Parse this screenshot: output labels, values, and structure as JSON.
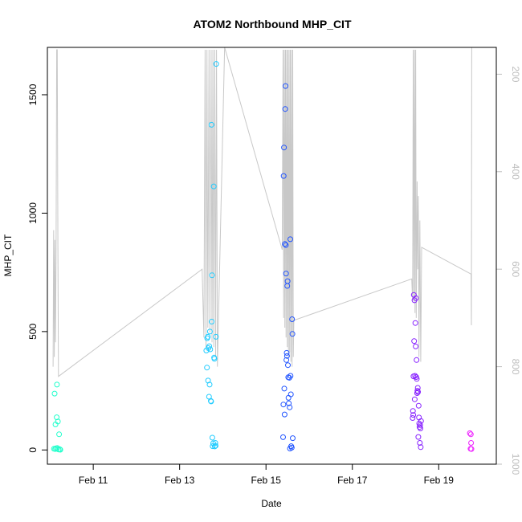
{
  "chart_data": {
    "type": "scatter",
    "title": "ATOM2 Northbound MHP_CIT",
    "xlabel": "Date",
    "ylabel": "MHP_CIT",
    "x_is_date": true,
    "xlim": [
      "2024-02-09T22:30",
      "2024-02-20T08:00"
    ],
    "ylim": [
      -60,
      1700
    ],
    "x_ticks": [
      {
        "value": "2024-02-11T00:00",
        "label": "Feb 11"
      },
      {
        "value": "2024-02-13T00:00",
        "label": "Feb 13"
      },
      {
        "value": "2024-02-15T00:00",
        "label": "Feb 15"
      },
      {
        "value": "2024-02-17T00:00",
        "label": "Feb 17"
      },
      {
        "value": "2024-02-19T00:00",
        "label": "Feb 19"
      }
    ],
    "y_ticks": [
      0,
      500,
      1000,
      1500
    ],
    "secondary_axis": {
      "ylim": [
        1000,
        145
      ],
      "reversed": true,
      "ticks": [
        200,
        400,
        600,
        800,
        1000
      ],
      "color": "#bebebe"
    },
    "colors": {
      "axis": "#000000",
      "line": "#c8c8c8",
      "secondary_axis": "#bebebe"
    },
    "series": [
      {
        "color": "#22ffcc",
        "points": [
          [
            "2024-02-10T02:10",
            5
          ],
          [
            "2024-02-10T02:30",
            238
          ],
          [
            "2024-02-10T02:50",
            4
          ],
          [
            "2024-02-10T03:00",
            108
          ],
          [
            "2024-02-10T03:20",
            7
          ],
          [
            "2024-02-10T03:40",
            138
          ],
          [
            "2024-02-10T03:50",
            276
          ],
          [
            "2024-02-10T04:00",
            8
          ],
          [
            "2024-02-10T04:20",
            120
          ],
          [
            "2024-02-10T04:40",
            2
          ],
          [
            "2024-02-10T05:00",
            66
          ],
          [
            "2024-02-10T05:20",
            3
          ],
          [
            "2024-02-10T05:40",
            1
          ]
        ]
      },
      {
        "color": "#22ccff",
        "points": [
          [
            "2024-02-13T14:50",
            420
          ],
          [
            "2024-02-13T15:10",
            348
          ],
          [
            "2024-02-13T15:20",
            472
          ],
          [
            "2024-02-13T15:40",
            478
          ],
          [
            "2024-02-13T15:50",
            293
          ],
          [
            "2024-02-13T16:00",
            430
          ],
          [
            "2024-02-13T16:20",
            225
          ],
          [
            "2024-02-13T16:30",
            438
          ],
          [
            "2024-02-13T16:40",
            276
          ],
          [
            "2024-02-13T16:50",
            500
          ],
          [
            "2024-02-13T17:00",
            425
          ],
          [
            "2024-02-13T17:20",
            207
          ],
          [
            "2024-02-13T17:30",
            205
          ],
          [
            "2024-02-13T17:40",
            1373
          ],
          [
            "2024-02-13T17:50",
            542
          ],
          [
            "2024-02-13T18:00",
            738
          ],
          [
            "2024-02-13T18:10",
            52
          ],
          [
            "2024-02-13T18:20",
            16
          ],
          [
            "2024-02-13T18:40",
            28
          ],
          [
            "2024-02-13T19:00",
            1113
          ],
          [
            "2024-02-13T19:10",
            390
          ],
          [
            "2024-02-13T19:20",
            385
          ],
          [
            "2024-02-13T19:30",
            15
          ],
          [
            "2024-02-13T19:50",
            30
          ],
          [
            "2024-02-13T20:00",
            18
          ],
          [
            "2024-02-13T20:10",
            478
          ],
          [
            "2024-02-13T20:20",
            1630
          ]
        ]
      },
      {
        "color": "#2255ff",
        "points": [
          [
            "2024-02-15T09:30",
            54
          ],
          [
            "2024-02-15T09:40",
            192
          ],
          [
            "2024-02-15T09:50",
            1157
          ],
          [
            "2024-02-15T10:00",
            1277
          ],
          [
            "2024-02-15T10:10",
            259
          ],
          [
            "2024-02-15T10:20",
            150
          ],
          [
            "2024-02-15T10:30",
            870
          ],
          [
            "2024-02-15T10:40",
            1440
          ],
          [
            "2024-02-15T10:50",
            1537
          ],
          [
            "2024-02-15T11:00",
            865
          ],
          [
            "2024-02-15T11:10",
            745
          ],
          [
            "2024-02-15T11:20",
            380
          ],
          [
            "2024-02-15T11:30",
            410
          ],
          [
            "2024-02-15T11:40",
            397
          ],
          [
            "2024-02-15T11:50",
            693
          ],
          [
            "2024-02-15T12:00",
            713
          ],
          [
            "2024-02-15T12:10",
            358
          ],
          [
            "2024-02-15T12:20",
            307
          ],
          [
            "2024-02-15T12:30",
            220
          ],
          [
            "2024-02-15T12:40",
            197
          ],
          [
            "2024-02-15T13:00",
            305
          ],
          [
            "2024-02-15T13:10",
            180
          ],
          [
            "2024-02-15T13:20",
            6
          ],
          [
            "2024-02-15T13:30",
            890
          ],
          [
            "2024-02-15T13:40",
            313
          ],
          [
            "2024-02-15T13:50",
            235
          ],
          [
            "2024-02-15T14:00",
            16
          ],
          [
            "2024-02-15T14:20",
            10
          ],
          [
            "2024-02-15T14:30",
            552
          ],
          [
            "2024-02-15T14:40",
            490
          ],
          [
            "2024-02-15T14:50",
            50
          ]
        ]
      },
      {
        "color": "#8822ff",
        "points": [
          [
            "2024-02-18T09:30",
            135
          ],
          [
            "2024-02-18T09:40",
            165
          ],
          [
            "2024-02-18T09:50",
            148
          ],
          [
            "2024-02-18T10:00",
            311
          ],
          [
            "2024-02-18T10:10",
            655
          ],
          [
            "2024-02-18T10:20",
            460
          ],
          [
            "2024-02-18T10:30",
            632
          ],
          [
            "2024-02-18T10:40",
            214
          ],
          [
            "2024-02-18T10:50",
            313
          ],
          [
            "2024-02-18T11:00",
            536
          ],
          [
            "2024-02-18T11:10",
            437
          ],
          [
            "2024-02-18T11:20",
            641
          ],
          [
            "2024-02-18T11:30",
            308
          ],
          [
            "2024-02-18T11:40",
            380
          ],
          [
            "2024-02-18T11:50",
            300
          ],
          [
            "2024-02-18T12:00",
            240
          ],
          [
            "2024-02-18T12:10",
            250
          ],
          [
            "2024-02-18T12:20",
            262
          ],
          [
            "2024-02-18T12:30",
            245
          ],
          [
            "2024-02-18T12:40",
            55
          ],
          [
            "2024-02-18T12:50",
            187
          ],
          [
            "2024-02-18T13:00",
            137
          ],
          [
            "2024-02-18T13:10",
            112
          ],
          [
            "2024-02-18T13:20",
            97
          ],
          [
            "2024-02-18T13:30",
            30
          ],
          [
            "2024-02-18T13:40",
            105
          ],
          [
            "2024-02-18T13:50",
            91
          ],
          [
            "2024-02-18T14:00",
            12
          ],
          [
            "2024-02-18T14:10",
            122
          ]
        ]
      },
      {
        "color": "#ee22ff",
        "points": [
          [
            "2024-02-19T17:20",
            71
          ],
          [
            "2024-02-19T17:40",
            5
          ],
          [
            "2024-02-19T17:50",
            66
          ],
          [
            "2024-02-19T18:00",
            30
          ],
          [
            "2024-02-19T18:10",
            4
          ]
        ]
      }
    ],
    "line_series": {
      "axis": "secondary",
      "color": "#c8c8c8",
      "points": [
        [
          "2024-02-10T01:40",
          800
        ],
        [
          "2024-02-10T02:00",
          520
        ],
        [
          "2024-02-10T02:20",
          780
        ],
        [
          "2024-02-10T02:40",
          540
        ],
        [
          "2024-02-10T03:00",
          750
        ],
        [
          "2024-02-10T03:20",
          580
        ],
        [
          "2024-02-10T03:40",
          150
        ],
        [
          "2024-02-10T04:00",
          150
        ],
        [
          "2024-02-10T04:20",
          560
        ],
        [
          "2024-02-10T04:40",
          820
        ],
        [
          "2024-02-13T12:30",
          600
        ],
        [
          "2024-02-13T13:30",
          740
        ],
        [
          "2024-02-13T14:10",
          150
        ],
        [
          "2024-02-13T14:40",
          760
        ],
        [
          "2024-02-13T15:10",
          150
        ],
        [
          "2024-02-13T15:40",
          720
        ],
        [
          "2024-02-13T16:20",
          150
        ],
        [
          "2024-02-13T16:50",
          730
        ],
        [
          "2024-02-13T17:30",
          150
        ],
        [
          "2024-02-13T18:00",
          750
        ],
        [
          "2024-02-13T18:30",
          150
        ],
        [
          "2024-02-13T19:00",
          760
        ],
        [
          "2024-02-13T19:30",
          150
        ],
        [
          "2024-02-13T20:00",
          780
        ],
        [
          "2024-02-13T20:30",
          150
        ],
        [
          "2024-02-13T21:00",
          800
        ],
        [
          "2024-02-14T01:00",
          145
        ],
        [
          "2024-02-15T09:00",
          560
        ],
        [
          "2024-02-15T09:30",
          150
        ],
        [
          "2024-02-15T09:50",
          700
        ],
        [
          "2024-02-15T10:10",
          150
        ],
        [
          "2024-02-15T10:30",
          720
        ],
        [
          "2024-02-15T10:50",
          150
        ],
        [
          "2024-02-15T11:10",
          740
        ],
        [
          "2024-02-15T11:30",
          150
        ],
        [
          "2024-02-15T11:50",
          760
        ],
        [
          "2024-02-15T12:10",
          150
        ],
        [
          "2024-02-15T12:30",
          780
        ],
        [
          "2024-02-15T12:50",
          150
        ],
        [
          "2024-02-15T13:10",
          770
        ],
        [
          "2024-02-15T13:30",
          150
        ],
        [
          "2024-02-15T13:50",
          790
        ],
        [
          "2024-02-15T14:10",
          150
        ],
        [
          "2024-02-15T14:30",
          800
        ],
        [
          "2024-02-15T14:50",
          150
        ],
        [
          "2024-02-15T15:10",
          780
        ],
        [
          "2024-02-15T15:30",
          705
        ],
        [
          "2024-02-18T09:00",
          620
        ],
        [
          "2024-02-18T09:30",
          665
        ],
        [
          "2024-02-18T09:50",
          150
        ],
        [
          "2024-02-18T10:10",
          665
        ],
        [
          "2024-02-18T10:30",
          150
        ],
        [
          "2024-02-18T10:50",
          690
        ],
        [
          "2024-02-18T11:10",
          150
        ],
        [
          "2024-02-18T11:30",
          700
        ],
        [
          "2024-02-18T12:00",
          420
        ],
        [
          "2024-02-18T12:20",
          600
        ],
        [
          "2024-02-18T12:40",
          450
        ],
        [
          "2024-02-18T13:00",
          780
        ],
        [
          "2024-02-18T13:30",
          500
        ],
        [
          "2024-02-18T14:00",
          790
        ],
        [
          "2024-02-18T14:30",
          555
        ],
        [
          "2024-02-19T18:00",
          610
        ],
        [
          "2024-02-19T18:10",
          715
        ],
        [
          "2024-02-19T18:20",
          145
        ]
      ]
    }
  }
}
